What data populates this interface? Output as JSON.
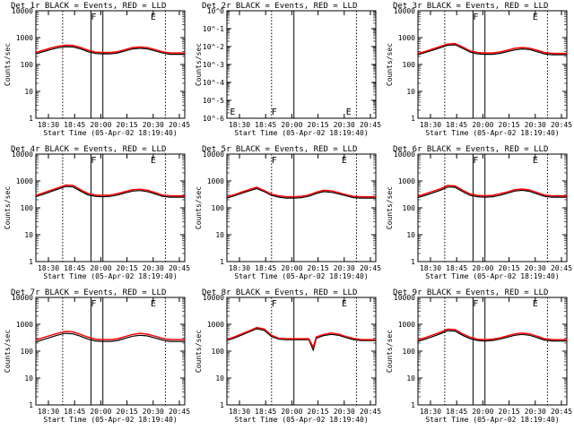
{
  "figure": {
    "title_suffix": " BLACK = Events, RED = LLD",
    "xlabel": "Start Time (05-Apr-02 18:19:40)",
    "ylabel": "Counts/sec",
    "x_ticks": [
      "18:30",
      "18:45",
      "20:00",
      "20:15",
      "20:30",
      "20:45"
    ]
  },
  "chart_data": [
    {
      "type": "line",
      "detector": "Det 1r",
      "title": "Det 1r BLACK = Events, RED = LLD",
      "xlabel": "Start Time (05-Apr-02 18:19:40)",
      "ylabel": "Counts/sec",
      "x_ticks": [
        "18:30",
        "18:45",
        "20:00",
        "20:15",
        "20:30",
        "20:45"
      ],
      "y_scale": "log",
      "ylim": [
        1,
        10000
      ],
      "y_ticks": [
        "1",
        "10",
        "100",
        "1000",
        "10000"
      ],
      "x": [
        0,
        0.05,
        0.1,
        0.15,
        0.2,
        0.25,
        0.3,
        0.35,
        0.4,
        0.45,
        0.5,
        0.55,
        0.6,
        0.65,
        0.7,
        0.75,
        0.8,
        0.85,
        0.9,
        0.95,
        1
      ],
      "series": [
        {
          "name": "Events",
          "color": "#000000",
          "values": [
            250,
            300,
            360,
            420,
            460,
            450,
            380,
            300,
            260,
            250,
            250,
            270,
            320,
            380,
            400,
            380,
            320,
            270,
            240,
            240,
            240
          ]
        },
        {
          "name": "LLD",
          "color": "#ff0000",
          "values": [
            280,
            340,
            410,
            480,
            520,
            510,
            430,
            340,
            290,
            280,
            280,
            300,
            360,
            430,
            450,
            420,
            360,
            300,
            270,
            270,
            270
          ]
        }
      ],
      "vlines_dotted": [
        0.18,
        0.87
      ],
      "vlines_solid": [
        0.37,
        0.45
      ],
      "markers": [
        {
          "label": "F",
          "x": 0.37
        },
        {
          "label": "E",
          "x": 0.77
        }
      ]
    },
    {
      "type": "line",
      "detector": "Det 2r",
      "title": "Det 2r BLACK = Events, RED = LLD",
      "xlabel": "Start Time (05-Apr-02 18:19:40)",
      "ylabel": "Counts/sec",
      "x_ticks": [
        "18:30",
        "18:45",
        "20:00",
        "20:15",
        "20:30",
        "20:45"
      ],
      "y_scale": "log",
      "ylim": [
        1e-06,
        1
      ],
      "y_ticks": [
        "10^-6",
        "10^-5",
        "10^-4",
        "10^-3",
        "10^-2",
        "10^-1",
        "10^0"
      ],
      "x": [],
      "series": [],
      "vlines_dotted": [
        0.3,
        0.87
      ],
      "vlines_solid": [
        0.45
      ],
      "markers": [
        {
          "label": "E",
          "x": 0.02
        },
        {
          "label": "F",
          "x": 0.3
        },
        {
          "label": "E",
          "x": 0.8
        }
      ]
    },
    {
      "type": "line",
      "detector": "Det 3r",
      "title": "Det 3r BLACK = Events, RED = LLD",
      "xlabel": "Start Time (05-Apr-02 18:19:40)",
      "ylabel": "Counts/sec",
      "x_ticks": [
        "18:30",
        "18:45",
        "20:00",
        "20:15",
        "20:30",
        "20:45"
      ],
      "y_scale": "log",
      "ylim": [
        1,
        10000
      ],
      "y_ticks": [
        "1",
        "10",
        "100",
        "1000",
        "10000"
      ],
      "x": [
        0,
        0.05,
        0.1,
        0.15,
        0.2,
        0.25,
        0.3,
        0.35,
        0.4,
        0.45,
        0.5,
        0.55,
        0.6,
        0.65,
        0.7,
        0.75,
        0.8,
        0.85,
        0.9,
        0.95,
        1
      ],
      "series": [
        {
          "name": "Events",
          "color": "#000000",
          "values": [
            230,
            280,
            340,
            420,
            520,
            540,
            400,
            290,
            250,
            240,
            240,
            260,
            300,
            350,
            380,
            360,
            300,
            250,
            230,
            230,
            230
          ]
        },
        {
          "name": "LLD",
          "color": "#ff0000",
          "values": [
            260,
            310,
            380,
            470,
            580,
            600,
            450,
            320,
            280,
            270,
            270,
            290,
            340,
            400,
            430,
            400,
            340,
            280,
            260,
            260,
            260
          ]
        }
      ],
      "vlines_dotted": [
        0.18,
        0.87
      ],
      "vlines_solid": [
        0.37,
        0.45
      ],
      "markers": [
        {
          "label": "F",
          "x": 0.37
        },
        {
          "label": "E",
          "x": 0.77
        }
      ]
    },
    {
      "type": "line",
      "detector": "Det 4r",
      "title": "Det 4r BLACK = Events, RED = LLD",
      "xlabel": "Start Time (05-Apr-02 18:19:40)",
      "ylabel": "Counts/sec",
      "x_ticks": [
        "18:30",
        "18:45",
        "20:00",
        "20:15",
        "20:30",
        "20:45"
      ],
      "y_scale": "log",
      "ylim": [
        1,
        10000
      ],
      "y_ticks": [
        "1",
        "10",
        "100",
        "1000",
        "10000"
      ],
      "x": [
        0,
        0.05,
        0.1,
        0.15,
        0.2,
        0.25,
        0.3,
        0.35,
        0.4,
        0.45,
        0.5,
        0.55,
        0.6,
        0.65,
        0.7,
        0.75,
        0.8,
        0.85,
        0.9,
        0.95,
        1
      ],
      "series": [
        {
          "name": "Events",
          "color": "#000000",
          "values": [
            260,
            320,
            400,
            500,
            620,
            600,
            420,
            300,
            270,
            260,
            270,
            300,
            360,
            420,
            440,
            400,
            330,
            270,
            250,
            250,
            250
          ]
        },
        {
          "name": "LLD",
          "color": "#ff0000",
          "values": [
            290,
            360,
            450,
            560,
            700,
            680,
            470,
            340,
            300,
            290,
            300,
            340,
            400,
            470,
            490,
            450,
            370,
            300,
            280,
            280,
            280
          ]
        }
      ],
      "vlines_dotted": [
        0.18,
        0.87
      ],
      "vlines_solid": [
        0.37,
        0.45
      ],
      "markers": [
        {
          "label": "F",
          "x": 0.37
        },
        {
          "label": "E",
          "x": 0.77
        }
      ]
    },
    {
      "type": "line",
      "detector": "Det 5r",
      "title": "Det 5r BLACK = Events, RED = LLD",
      "xlabel": "Start Time (05-Apr-02 18:19:40)",
      "ylabel": "Counts/sec",
      "x_ticks": [
        "18:30",
        "18:45",
        "20:00",
        "20:15",
        "20:30",
        "20:45"
      ],
      "y_scale": "log",
      "ylim": [
        1,
        10000
      ],
      "y_ticks": [
        "1",
        "10",
        "100",
        "1000",
        "10000"
      ],
      "x": [
        0,
        0.05,
        0.1,
        0.15,
        0.2,
        0.25,
        0.3,
        0.35,
        0.4,
        0.45,
        0.5,
        0.55,
        0.6,
        0.65,
        0.7,
        0.75,
        0.8,
        0.85,
        0.9,
        0.95,
        1
      ],
      "series": [
        {
          "name": "Events",
          "color": "#000000",
          "values": [
            230,
            280,
            350,
            430,
            520,
            400,
            290,
            250,
            230,
            230,
            240,
            270,
            340,
            400,
            380,
            330,
            280,
            240,
            230,
            230,
            230
          ]
        },
        {
          "name": "LLD",
          "color": "#ff0000",
          "values": [
            260,
            310,
            390,
            480,
            580,
            440,
            320,
            280,
            260,
            260,
            270,
            300,
            380,
            450,
            430,
            370,
            310,
            270,
            260,
            260,
            260
          ]
        }
      ],
      "vlines_dotted": [
        0.3,
        0.87
      ],
      "vlines_solid": [
        0.45
      ],
      "markers": [
        {
          "label": "F",
          "x": 0.3
        },
        {
          "label": "E",
          "x": 0.77
        }
      ]
    },
    {
      "type": "line",
      "detector": "Det 6r",
      "title": "Det 6r BLACK = Events, RED = LLD",
      "xlabel": "Start Time (05-Apr-02 18:19:40)",
      "ylabel": "Counts/sec",
      "x_ticks": [
        "18:30",
        "18:45",
        "20:00",
        "20:15",
        "20:30",
        "20:45"
      ],
      "y_scale": "log",
      "ylim": [
        1,
        10000
      ],
      "y_ticks": [
        "1",
        "10",
        "100",
        "1000",
        "10000"
      ],
      "x": [
        0,
        0.05,
        0.1,
        0.15,
        0.2,
        0.25,
        0.3,
        0.35,
        0.4,
        0.45,
        0.5,
        0.55,
        0.6,
        0.65,
        0.7,
        0.75,
        0.8,
        0.85,
        0.9,
        0.95,
        1
      ],
      "series": [
        {
          "name": "Events",
          "color": "#000000",
          "values": [
            240,
            290,
            360,
            450,
            600,
            580,
            400,
            290,
            260,
            250,
            260,
            290,
            350,
            420,
            450,
            410,
            330,
            270,
            250,
            250,
            250
          ]
        },
        {
          "name": "LLD",
          "color": "#ff0000",
          "values": [
            270,
            330,
            410,
            510,
            680,
            650,
            450,
            330,
            290,
            280,
            290,
            330,
            390,
            470,
            500,
            460,
            370,
            300,
            280,
            280,
            280
          ]
        }
      ],
      "vlines_dotted": [
        0.18,
        0.87
      ],
      "vlines_solid": [
        0.37,
        0.45
      ],
      "markers": [
        {
          "label": "F",
          "x": 0.37
        },
        {
          "label": "E",
          "x": 0.77
        }
      ]
    },
    {
      "type": "line",
      "detector": "Det 7r",
      "title": "Det 7r BLACK = Events, RED = LLD",
      "xlabel": "Start Time (05-Apr-02 18:19:40)",
      "ylabel": "Counts/sec",
      "x_ticks": [
        "18:30",
        "18:45",
        "20:00",
        "20:15",
        "20:30",
        "20:45"
      ],
      "y_scale": "log",
      "ylim": [
        1,
        10000
      ],
      "y_ticks": [
        "1",
        "10",
        "100",
        "1000",
        "10000"
      ],
      "x": [
        0,
        0.05,
        0.1,
        0.15,
        0.2,
        0.25,
        0.3,
        0.35,
        0.4,
        0.45,
        0.5,
        0.55,
        0.6,
        0.65,
        0.7,
        0.75,
        0.8,
        0.85,
        0.9,
        0.95,
        1
      ],
      "series": [
        {
          "name": "Events",
          "color": "#000000",
          "values": [
            220,
            270,
            330,
            400,
            460,
            440,
            360,
            280,
            240,
            230,
            230,
            250,
            300,
            360,
            390,
            370,
            310,
            260,
            230,
            230,
            230
          ]
        },
        {
          "name": "LLD",
          "color": "#ff0000",
          "values": [
            260,
            320,
            390,
            470,
            540,
            520,
            420,
            330,
            280,
            270,
            270,
            290,
            350,
            420,
            460,
            430,
            360,
            300,
            270,
            270,
            270
          ]
        }
      ],
      "vlines_dotted": [
        0.18,
        0.87
      ],
      "vlines_solid": [
        0.37,
        0.45
      ],
      "markers": [
        {
          "label": "F",
          "x": 0.37
        },
        {
          "label": "E",
          "x": 0.77
        }
      ]
    },
    {
      "type": "line",
      "detector": "Det 8r",
      "title": "Det 8r BLACK = Events, RED = LLD",
      "xlabel": "Start Time (05-Apr-02 18:19:40)",
      "ylabel": "Counts/sec",
      "x_ticks": [
        "18:30",
        "18:45",
        "20:00",
        "20:15",
        "20:30",
        "20:45"
      ],
      "y_scale": "log",
      "ylim": [
        1,
        10000
      ],
      "y_ticks": [
        "1",
        "10",
        "100",
        "1000",
        "10000"
      ],
      "x": [
        0,
        0.05,
        0.1,
        0.15,
        0.2,
        0.25,
        0.3,
        0.35,
        0.4,
        0.45,
        0.5,
        0.55,
        0.58,
        0.6,
        0.65,
        0.7,
        0.75,
        0.8,
        0.85,
        0.9,
        0.95,
        1
      ],
      "series": [
        {
          "name": "Events",
          "color": "#000000",
          "values": [
            250,
            310,
            400,
            520,
            680,
            600,
            350,
            280,
            270,
            270,
            270,
            270,
            110,
            300,
            380,
            420,
            390,
            320,
            270,
            250,
            250,
            250
          ]
        },
        {
          "name": "LLD",
          "color": "#ff0000",
          "values": [
            270,
            340,
            440,
            570,
            760,
            670,
            390,
            300,
            290,
            290,
            290,
            290,
            140,
            340,
            420,
            470,
            430,
            350,
            300,
            270,
            270,
            270
          ]
        }
      ],
      "vlines_dotted": [
        0.3,
        0.87
      ],
      "vlines_solid": [
        0.45
      ],
      "markers": [
        {
          "label": "F",
          "x": 0.3
        },
        {
          "label": "E",
          "x": 0.77
        }
      ]
    },
    {
      "type": "line",
      "detector": "Det 9r",
      "title": "Det 9r BLACK = Events, RED = LLD",
      "xlabel": "Start Time (05-Apr-02 18:19:40)",
      "ylabel": "Counts/sec",
      "x_ticks": [
        "18:30",
        "18:45",
        "20:00",
        "20:15",
        "20:30",
        "20:45"
      ],
      "y_scale": "log",
      "ylim": [
        1,
        10000
      ],
      "y_ticks": [
        "1",
        "10",
        "100",
        "1000",
        "10000"
      ],
      "x": [
        0,
        0.05,
        0.1,
        0.15,
        0.2,
        0.25,
        0.3,
        0.35,
        0.4,
        0.45,
        0.5,
        0.55,
        0.6,
        0.65,
        0.7,
        0.75,
        0.8,
        0.85,
        0.9,
        0.95,
        1
      ],
      "series": [
        {
          "name": "Events",
          "color": "#000000",
          "values": [
            230,
            280,
            350,
            440,
            580,
            560,
            390,
            290,
            250,
            240,
            250,
            280,
            330,
            390,
            420,
            390,
            320,
            260,
            240,
            240,
            240
          ]
        },
        {
          "name": "LLD",
          "color": "#ff0000",
          "values": [
            260,
            320,
            400,
            500,
            660,
            630,
            440,
            330,
            280,
            270,
            280,
            310,
            370,
            440,
            470,
            440,
            360,
            290,
            270,
            270,
            270
          ]
        }
      ],
      "vlines_dotted": [
        0.18,
        0.87
      ],
      "vlines_solid": [
        0.37,
        0.45
      ],
      "markers": [
        {
          "label": "F",
          "x": 0.37
        },
        {
          "label": "E",
          "x": 0.77
        }
      ]
    }
  ]
}
